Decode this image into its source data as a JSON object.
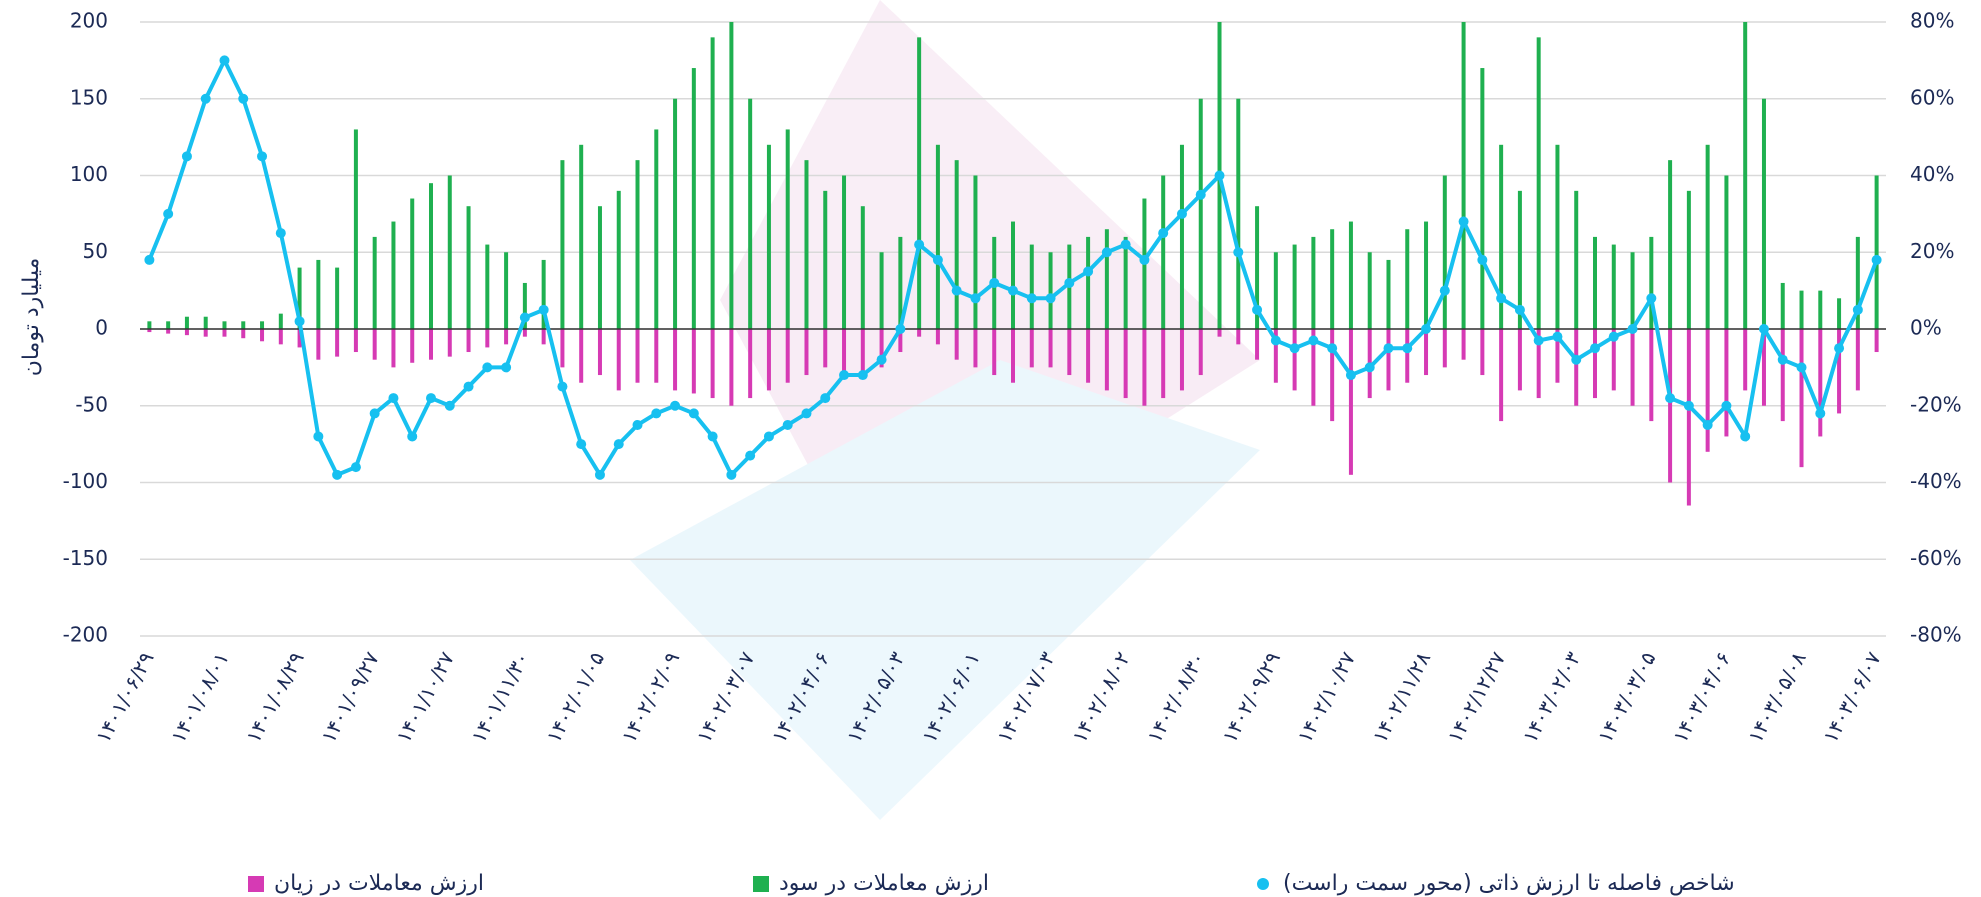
{
  "chart_data": {
    "type": "bar-line",
    "y_label": "میلیارد تومان",
    "categories": [
      "۱۴۰۱/۰۶/۲۹",
      null,
      null,
      null,
      "۱۴۰۱/۰۸/۰۱",
      null,
      null,
      null,
      "۱۴۰۱/۰۸/۲۹",
      null,
      null,
      null,
      "۱۴۰۱/۰۹/۲۷",
      null,
      null,
      null,
      "۱۴۰۱/۱۰/۲۷",
      null,
      null,
      null,
      "۱۴۰۱/۱۱/۳۰",
      null,
      null,
      null,
      "۱۴۰۲/۰۱/۰۵",
      null,
      null,
      null,
      "۱۴۰۲/۰۲/۰۹",
      null,
      null,
      null,
      "۱۴۰۲/۰۳/۰۷",
      null,
      null,
      null,
      "۱۴۰۲/۰۴/۰۶",
      null,
      null,
      null,
      "۱۴۰۲/۰۵/۰۳",
      null,
      null,
      null,
      "۱۴۰۲/۰۶/۰۱",
      null,
      null,
      null,
      "۱۴۰۲/۰۷/۰۳",
      null,
      null,
      null,
      "۱۴۰۲/۰۸/۰۲",
      null,
      null,
      null,
      "۱۴۰۲/۰۸/۳۰",
      null,
      null,
      null,
      "۱۴۰۲/۰۹/۲۹",
      null,
      null,
      null,
      "۱۴۰۲/۱۰/۲۷",
      null,
      null,
      null,
      "۱۴۰۲/۱۱/۲۸",
      null,
      null,
      null,
      "۱۴۰۲/۱۲/۲۷",
      null,
      null,
      null,
      "۱۴۰۳/۰۲/۰۳",
      null,
      null,
      null,
      "۱۴۰۳/۰۳/۰۵",
      null,
      null,
      null,
      "۱۴۰۳/۰۴/۰۶",
      null,
      null,
      null,
      "۱۴۰۳/۰۵/۰۸",
      null,
      null,
      null,
      "۱۴۰۳/۰۶/۰۷"
    ],
    "series": [
      {
        "name": "شاخص فاصله تا ارزش ذاتی (محور سمت راست)",
        "color": "#17c0f0",
        "axis": "y2",
        "kind": "line",
        "values": [
          18,
          30,
          45,
          60,
          70,
          60,
          45,
          25,
          2,
          -28,
          -38,
          -36,
          -22,
          -18,
          -28,
          -18,
          -20,
          -15,
          -10,
          -10,
          3,
          5,
          -15,
          -30,
          -38,
          -30,
          -25,
          -22,
          -20,
          -22,
          -28,
          -38,
          -33,
          -28,
          -25,
          -22,
          -18,
          -12,
          -12,
          -8,
          0,
          22,
          18,
          10,
          8,
          12,
          10,
          8,
          8,
          12,
          15,
          20,
          22,
          18,
          25,
          30,
          35,
          40,
          20,
          5,
          -3,
          -5,
          -3,
          -5,
          -12,
          -10,
          -5,
          -5,
          0,
          10,
          28,
          18,
          8,
          5,
          -3,
          -2,
          -8,
          -5,
          -2,
          0,
          8,
          -18,
          -20,
          -25,
          -20,
          -28,
          0,
          -8,
          -10,
          -22,
          -5,
          5,
          18
        ]
      },
      {
        "name": "ارزش معاملات در سود",
        "color": "#1fb050",
        "kind": "bar",
        "values": [
          5,
          5,
          8,
          8,
          5,
          5,
          5,
          10,
          40,
          45,
          40,
          130,
          60,
          70,
          85,
          95,
          100,
          80,
          55,
          50,
          30,
          45,
          110,
          120,
          80,
          90,
          110,
          130,
          150,
          170,
          190,
          200,
          150,
          120,
          130,
          110,
          90,
          100,
          80,
          50,
          60,
          190,
          120,
          110,
          100,
          60,
          70,
          55,
          50,
          55,
          60,
          65,
          60,
          85,
          100,
          120,
          150,
          200,
          150,
          80,
          50,
          55,
          60,
          65,
          70,
          50,
          45,
          65,
          70,
          100,
          200,
          170,
          120,
          90,
          190,
          120,
          90,
          60,
          55,
          50,
          60,
          110,
          90,
          120,
          100,
          200,
          150,
          30,
          25,
          25,
          20,
          60,
          100
        ]
      },
      {
        "name": "ارزش معاملات در زیان",
        "color": "#d63ab4",
        "kind": "bar",
        "values": [
          -2,
          -3,
          -4,
          -5,
          -5,
          -6,
          -8,
          -10,
          -12,
          -20,
          -18,
          -15,
          -20,
          -25,
          -22,
          -20,
          -18,
          -15,
          -12,
          -10,
          -5,
          -10,
          -25,
          -35,
          -30,
          -40,
          -35,
          -35,
          -40,
          -42,
          -45,
          -50,
          -45,
          -40,
          -35,
          -30,
          -25,
          -28,
          -30,
          -25,
          -15,
          -5,
          -10,
          -20,
          -25,
          -30,
          -35,
          -25,
          -25,
          -30,
          -35,
          -40,
          -45,
          -50,
          -45,
          -40,
          -30,
          -5,
          -10,
          -20,
          -35,
          -40,
          -50,
          -60,
          -95,
          -45,
          -40,
          -35,
          -30,
          -25,
          -20,
          -30,
          -60,
          -40,
          -45,
          -35,
          -50,
          -45,
          -40,
          -50,
          -60,
          -100,
          -115,
          -80,
          -70,
          -40,
          -50,
          -60,
          -90,
          -70,
          -55,
          -40,
          -15
        ]
      }
    ],
    "ylim": [
      -200,
      200
    ],
    "yticks": [
      -200,
      -150,
      -100,
      -50,
      0,
      50,
      100,
      150,
      200
    ],
    "y2lim": [
      -80,
      80
    ],
    "y2ticks": [
      {
        "value": -80,
        "label": "-80%"
      },
      {
        "value": -60,
        "label": "-60%"
      },
      {
        "value": -40,
        "label": "-40%"
      },
      {
        "value": -20,
        "label": "-20%"
      },
      {
        "value": 0,
        "label": "0%"
      },
      {
        "value": 20,
        "label": "20%"
      },
      {
        "value": 40,
        "label": "40%"
      },
      {
        "value": 60,
        "label": "60%"
      },
      {
        "value": 80,
        "label": "80%"
      }
    ],
    "grid": true
  }
}
